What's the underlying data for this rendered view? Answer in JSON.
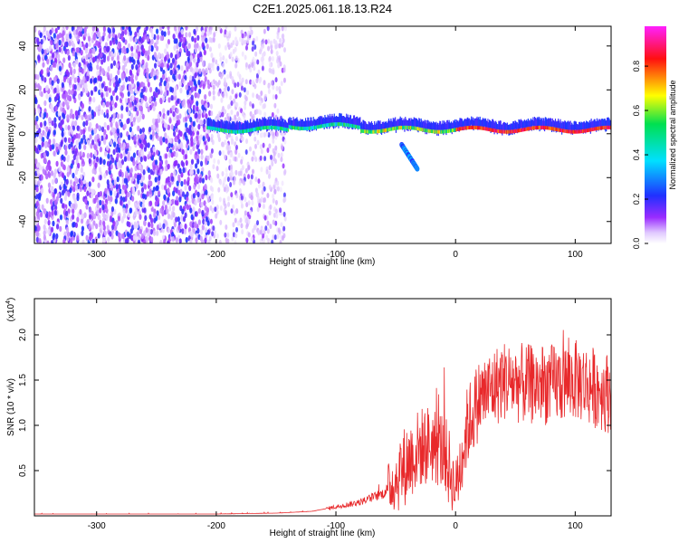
{
  "chart_data": [
    {
      "type": "heatmap",
      "title": "C2E1.2025.061.18.13.R24",
      "xlabel": "Height of straight line (km)",
      "ylabel": "Frequency (Hz)",
      "xlim": [
        -352,
        130
      ],
      "ylim": [
        -50,
        49
      ],
      "xticks": [
        -300,
        -200,
        -100,
        0,
        100
      ],
      "yticks": [
        -40,
        -20,
        0,
        20,
        40
      ],
      "colorbar": {
        "label": "Normalized spectral amplitude",
        "range": [
          0.0,
          0.98
        ],
        "ticks": [
          0.0,
          0.2,
          0.4,
          0.6,
          0.8
        ],
        "tick_labels": [
          "0.0",
          "0.2",
          "0.4",
          "0.6",
          "0.8"
        ],
        "colormap": "white-purple-blue-cyan-green-yellow-red-magenta"
      },
      "regions": [
        {
          "name": "broadband noise",
          "height_km": [
            -352,
            -205
          ],
          "frequency_hz": [
            -50,
            49
          ],
          "amplitude": [
            0.05,
            0.25
          ]
        },
        {
          "name": "sparse noise",
          "height_km": [
            -205,
            -142
          ],
          "frequency_hz": [
            -50,
            49
          ],
          "amplitude": [
            0.02,
            0.15
          ]
        },
        {
          "name": "signal line",
          "height_km": [
            -208,
            130
          ],
          "frequency_hz_center": [
            1,
            3
          ],
          "amplitude": [
            0.3,
            0.95
          ]
        },
        {
          "name": "descending feature",
          "height_km": [
            -45,
            -32
          ],
          "frequency_hz": [
            -16,
            -5
          ]
        }
      ]
    },
    {
      "type": "line",
      "xlabel": "Height of straight line (km)",
      "ylabel": "SNR (10 * v/v)",
      "yscale_label": "(x10",
      "yscale_exp": "4",
      "y_multiplier": 10000,
      "xlim": [
        -352,
        130
      ],
      "ylim": [
        0,
        2.4
      ],
      "xticks": [
        -300,
        -200,
        -100,
        0,
        100
      ],
      "yticks": [
        0.5,
        1.0,
        1.5,
        2.0
      ],
      "ytick_labels": [
        "0.5",
        "1.0",
        "1.5",
        "2.0"
      ],
      "color": "#e8292b",
      "series": [
        {
          "name": "SNR",
          "x": [
            -352,
            -200,
            -150,
            -120,
            -100,
            -80,
            -60,
            -50,
            -40,
            -30,
            -20,
            -10,
            0,
            10,
            20,
            40,
            60,
            80,
            100,
            120,
            130
          ],
          "y": [
            0.02,
            0.02,
            0.03,
            0.05,
            0.1,
            0.15,
            0.25,
            0.4,
            0.6,
            0.75,
            0.8,
            0.72,
            0.3,
            1.0,
            1.3,
            1.5,
            1.45,
            1.45,
            1.5,
            1.4,
            1.35
          ]
        }
      ]
    }
  ]
}
